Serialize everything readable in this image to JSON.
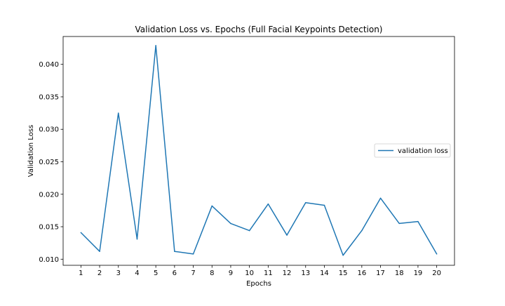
{
  "chart_data": {
    "type": "line",
    "title": "Validation Loss vs. Epochs (Full Facial Keypoints Detection)",
    "xlabel": "Epochs",
    "ylabel": "Validation Loss",
    "x": [
      1,
      2,
      3,
      4,
      5,
      6,
      7,
      8,
      9,
      10,
      11,
      12,
      13,
      14,
      15,
      16,
      17,
      18,
      19,
      20
    ],
    "x_ticks": [
      "1",
      "2",
      "3",
      "4",
      "5",
      "6",
      "7",
      "8",
      "9",
      "10",
      "11",
      "12",
      "13",
      "14",
      "15",
      "16",
      "17",
      "18",
      "19",
      "20"
    ],
    "y_ticks": [
      "0.010",
      "0.015",
      "0.020",
      "0.025",
      "0.030",
      "0.035",
      "0.040"
    ],
    "y_tick_values": [
      0.01,
      0.015,
      0.02,
      0.025,
      0.03,
      0.035,
      0.04
    ],
    "xlim": [
      0.05,
      20.95
    ],
    "ylim": [
      0.00906,
      0.04429
    ],
    "grid": false,
    "legend_position": "center-right",
    "series": [
      {
        "name": "validation loss",
        "color": "#1f77b4",
        "values": [
          0.0141,
          0.0112,
          0.0325,
          0.0131,
          0.0429,
          0.0112,
          0.0108,
          0.0182,
          0.0155,
          0.0144,
          0.0185,
          0.0137,
          0.0187,
          0.0183,
          0.0106,
          0.0144,
          0.0194,
          0.0155,
          0.0158,
          0.0108
        ]
      }
    ]
  }
}
